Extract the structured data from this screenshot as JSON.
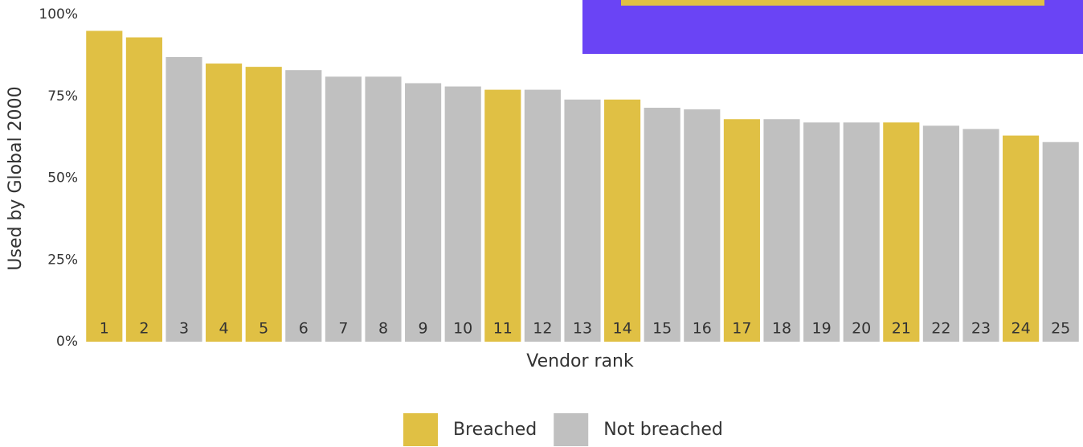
{
  "chart_data": {
    "type": "bar",
    "categories": [
      "1",
      "2",
      "3",
      "4",
      "5",
      "6",
      "7",
      "8",
      "9",
      "10",
      "11",
      "12",
      "13",
      "14",
      "15",
      "16",
      "17",
      "18",
      "19",
      "20",
      "21",
      "22",
      "23",
      "24",
      "25"
    ],
    "series": [
      {
        "name": "Breached",
        "color": "#e0c044",
        "values": [
          95,
          93,
          null,
          85,
          84,
          null,
          null,
          null,
          null,
          null,
          77,
          null,
          null,
          74,
          null,
          null,
          68,
          null,
          null,
          null,
          67,
          null,
          null,
          63,
          null
        ]
      },
      {
        "name": "Not breached",
        "color": "#c0c0c0",
        "values": [
          null,
          null,
          87,
          null,
          null,
          83,
          81,
          81,
          79,
          78,
          null,
          77,
          74,
          null,
          71.5,
          71,
          null,
          68,
          67,
          67,
          null,
          66,
          65,
          null,
          61
        ]
      }
    ],
    "ylim": [
      0,
      100
    ],
    "yticks": [
      {
        "value": 0,
        "label": "0%"
      },
      {
        "value": 25,
        "label": "25%"
      },
      {
        "value": 50,
        "label": "50%"
      },
      {
        "value": 75,
        "label": "75%"
      },
      {
        "value": 100,
        "label": "100%"
      }
    ],
    "xlabel": "Vendor rank",
    "ylabel": "Used by Global 2000",
    "legend": "bottom"
  }
}
